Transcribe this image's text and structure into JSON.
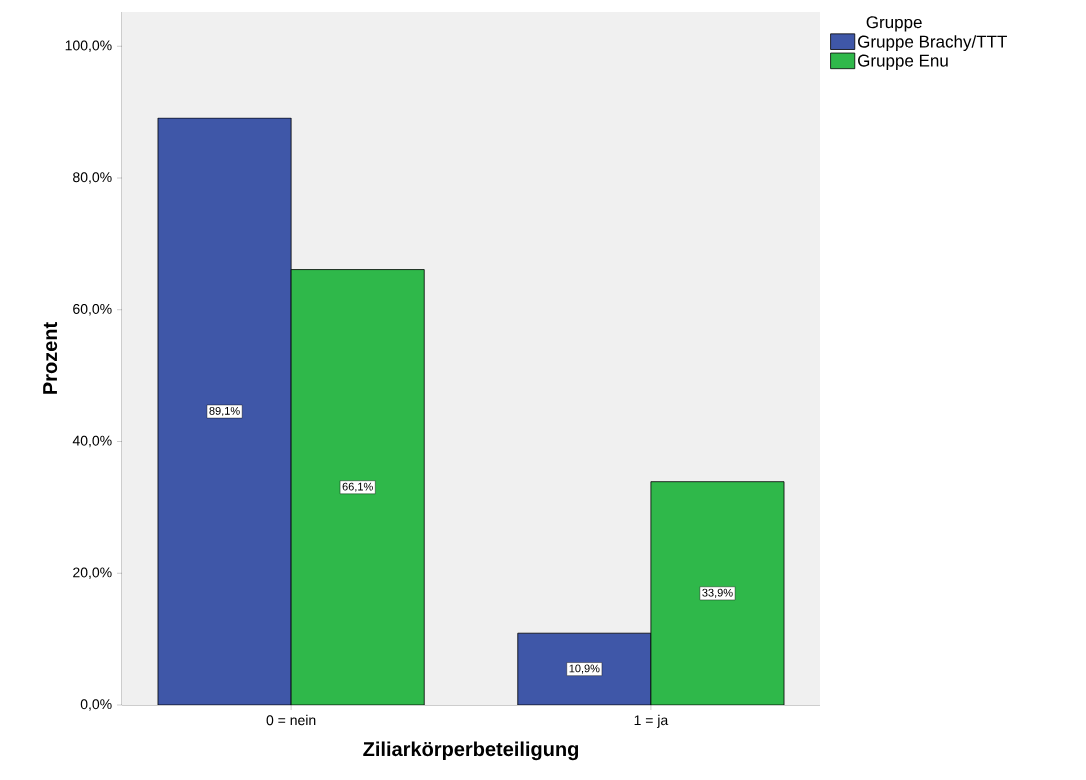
{
  "chart_data": {
    "type": "bar",
    "xlabel": "Ziliarkörperbeteiligung",
    "ylabel": "Prozent",
    "legend_title": "Gruppe",
    "legend": "top right",
    "categories": [
      "0 = nein",
      "1 = ja"
    ],
    "series": [
      {
        "name": "Gruppe Brachy/TTT",
        "color": "#3f57a8",
        "values": [
          89.1,
          10.9
        ],
        "value_labels": [
          "89,1%",
          "10,9%"
        ]
      },
      {
        "name": "Gruppe Enu",
        "color": "#2fb84a",
        "values": [
          66.1,
          33.9
        ],
        "value_labels": [
          "66,1%",
          "33,9%"
        ]
      }
    ],
    "ylim": [
      0,
      105.2
    ],
    "yticks": [
      {
        "value": 0,
        "label": "0,0%"
      },
      {
        "value": 20,
        "label": "20,0%"
      },
      {
        "value": 40,
        "label": "40,0%"
      },
      {
        "value": 60,
        "label": "60,0%"
      },
      {
        "value": 80,
        "label": "80,0%"
      },
      {
        "value": 100,
        "label": "100,0%"
      }
    ]
  }
}
